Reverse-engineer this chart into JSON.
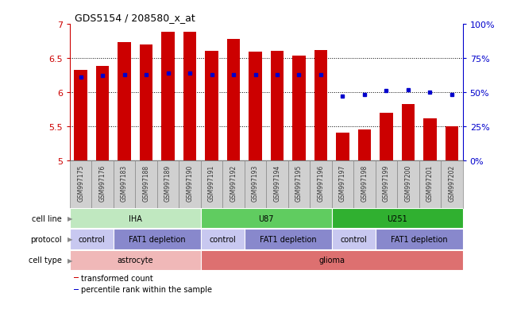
{
  "title": "GDS5154 / 208580_x_at",
  "samples": [
    "GSM997175",
    "GSM997176",
    "GSM997183",
    "GSM997188",
    "GSM997189",
    "GSM997190",
    "GSM997191",
    "GSM997192",
    "GSM997193",
    "GSM997194",
    "GSM997195",
    "GSM997196",
    "GSM997197",
    "GSM997198",
    "GSM997199",
    "GSM997200",
    "GSM997201",
    "GSM997202"
  ],
  "transformed_counts": [
    6.32,
    6.38,
    6.73,
    6.7,
    6.88,
    6.88,
    6.6,
    6.78,
    6.59,
    6.6,
    6.53,
    6.62,
    5.4,
    5.45,
    5.7,
    5.83,
    5.62,
    5.5
  ],
  "percentile_ranks": [
    61,
    62,
    63,
    63,
    64,
    64,
    63,
    63,
    63,
    63,
    63,
    63,
    47,
    48,
    51,
    52,
    50,
    48
  ],
  "y_min": 5.0,
  "y_max": 7.0,
  "y_ticks": [
    5.0,
    5.5,
    6.0,
    6.5,
    7.0
  ],
  "y_tick_labels": [
    "5",
    "5.5",
    "6",
    "6.5",
    "7"
  ],
  "right_y_ticks_pct": [
    0,
    25,
    50,
    75,
    100
  ],
  "right_y_labels": [
    "0%",
    "25%",
    "50%",
    "75%",
    "100%"
  ],
  "bar_color": "#cc0000",
  "dot_color": "#0000cc",
  "bar_bottom": 5.0,
  "plot_bg": "#ffffff",
  "xtick_bg": "#d0d0d0",
  "cell_line_groups": [
    {
      "text": "IHA",
      "start": 0,
      "end": 6,
      "color": "#c0e8c0"
    },
    {
      "text": "U87",
      "start": 6,
      "end": 12,
      "color": "#60cc60"
    },
    {
      "text": "U251",
      "start": 12,
      "end": 18,
      "color": "#30b030"
    }
  ],
  "protocol_groups": [
    {
      "text": "control",
      "start": 0,
      "end": 2,
      "color": "#c8c8f0"
    },
    {
      "text": "FAT1 depletion",
      "start": 2,
      "end": 6,
      "color": "#8888cc"
    },
    {
      "text": "control",
      "start": 6,
      "end": 8,
      "color": "#c8c8f0"
    },
    {
      "text": "FAT1 depletion",
      "start": 8,
      "end": 12,
      "color": "#8888cc"
    },
    {
      "text": "control",
      "start": 12,
      "end": 14,
      "color": "#c8c8f0"
    },
    {
      "text": "FAT1 depletion",
      "start": 14,
      "end": 18,
      "color": "#8888cc"
    }
  ],
  "cell_type_groups": [
    {
      "text": "astrocyte",
      "start": 0,
      "end": 6,
      "color": "#f0b8b8"
    },
    {
      "text": "glioma",
      "start": 6,
      "end": 18,
      "color": "#dd7070"
    }
  ],
  "row_labels": [
    "cell line",
    "protocol",
    "cell type"
  ],
  "legend_items": [
    {
      "color": "#cc0000",
      "label": "transformed count"
    },
    {
      "color": "#0000cc",
      "label": "percentile rank within the sample"
    }
  ],
  "left_axis_color": "#cc0000",
  "right_axis_color": "#0000cc",
  "spine_color": "#000000"
}
